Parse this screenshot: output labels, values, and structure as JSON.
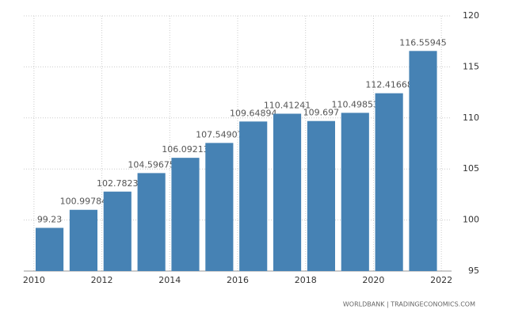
{
  "chart_data": {
    "type": "bar",
    "x": [
      2010,
      2011,
      2012,
      2013,
      2014,
      2015,
      2016,
      2017,
      2018,
      2019,
      2020,
      2021
    ],
    "values": [
      99.23,
      100.99784,
      102.7823,
      104.59675,
      106.09213,
      107.54907,
      109.64894,
      110.41241,
      109.697,
      110.49853,
      112.41668,
      116.55945
    ],
    "color": "#4682b4",
    "xlim": [
      2009.7,
      2022.3
    ],
    "xticks": [
      2010,
      2012,
      2014,
      2016,
      2018,
      2020,
      2022
    ],
    "ylim": [
      95,
      120
    ],
    "yticks": [
      95,
      100,
      105,
      110,
      115,
      120
    ],
    "grid": true,
    "source": "WORLDBANK | TRADINGECONOMICS.COM"
  }
}
